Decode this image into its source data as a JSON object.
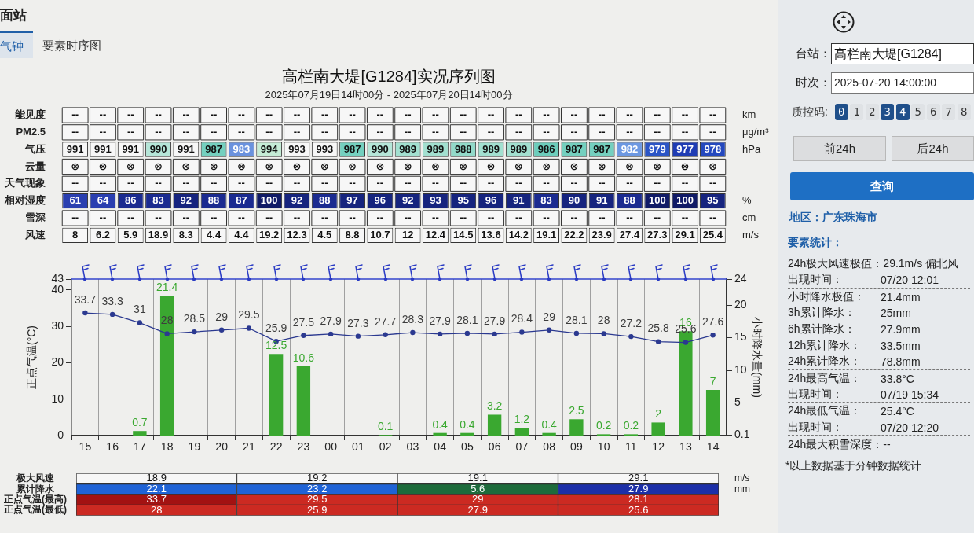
{
  "chart_data": [
    {
      "type": "other",
      "annotations": [
        "面站",
        "气钟",
        "要素时序图"
      ]
    },
    {
      "type": "heatmap",
      "title": "高栏南大堤[G1284]实况序列图",
      "subtitle": "2025年07月19日14时00分 - 2025年07月20日14时00分",
      "categories": [
        null,
        null,
        null,
        null,
        null,
        null,
        null,
        null,
        null,
        null,
        null,
        null,
        null,
        null,
        null,
        null,
        null,
        null,
        null,
        null,
        null,
        null,
        null,
        null
      ],
      "y_categories": [
        "能见度",
        "PM2.5",
        "气压",
        "云量",
        "天气现象",
        "相对湿度",
        "雪深",
        "风速"
      ],
      "y2_categories": [
        "km",
        "μg/m³",
        "hPa",
        null,
        null,
        "%",
        "cm",
        "m/s"
      ],
      "cells": [
        [
          null,
          null,
          null,
          null,
          null,
          null,
          null,
          null,
          null,
          null,
          null,
          null,
          null,
          null,
          null,
          null,
          null,
          null,
          null,
          null,
          null,
          null,
          null,
          null
        ],
        [
          null,
          null,
          null,
          null,
          null,
          null,
          null,
          null,
          null,
          null,
          null,
          null,
          null,
          null,
          null,
          null,
          null,
          null,
          null,
          null,
          null,
          null,
          null,
          null
        ],
        [
          991,
          991,
          991,
          990,
          991,
          987,
          983,
          994,
          993,
          993,
          987,
          990,
          989,
          989,
          988,
          989,
          989,
          986,
          987,
          987,
          982,
          979,
          977,
          978
        ],
        [
          null,
          null,
          null,
          null,
          null,
          null,
          null,
          null,
          null,
          null,
          null,
          null,
          null,
          null,
          null,
          null,
          null,
          null,
          null,
          null,
          null,
          null,
          null,
          null
        ],
        [
          null,
          null,
          null,
          null,
          null,
          null,
          null,
          null,
          null,
          null,
          null,
          null,
          null,
          null,
          null,
          null,
          null,
          null,
          null,
          null,
          null,
          null,
          null,
          null
        ],
        [
          61,
          64,
          86,
          83,
          92,
          88,
          87,
          100,
          92,
          88,
          97,
          96,
          92,
          93,
          95,
          96,
          91,
          83,
          90,
          91,
          88,
          100,
          100,
          95
        ],
        [
          null,
          null,
          null,
          null,
          null,
          null,
          null,
          null,
          null,
          null,
          null,
          null,
          null,
          null,
          null,
          null,
          null,
          null,
          null,
          null,
          null,
          null,
          null,
          null
        ],
        [
          8,
          6.2,
          5.9,
          18.9,
          8.3,
          4.4,
          4.4,
          19.2,
          12.3,
          4.5,
          8.8,
          10.7,
          12,
          12.4,
          14.5,
          13.6,
          14.2,
          19.1,
          22.2,
          23.9,
          27.4,
          27.3,
          29.1,
          25.4
        ]
      ],
      "cell_labels": [
        [
          "--",
          "--",
          "--",
          "--",
          "--",
          "--",
          "--",
          "--",
          "--",
          "--",
          "--",
          "--",
          "--",
          "--",
          "--",
          "--",
          "--",
          "--",
          "--",
          "--",
          "--",
          "--",
          "--",
          "--"
        ],
        [
          "--",
          "--",
          "--",
          "--",
          "--",
          "--",
          "--",
          "--",
          "--",
          "--",
          "--",
          "--",
          "--",
          "--",
          "--",
          "--",
          "--",
          "--",
          "--",
          "--",
          "--",
          "--",
          "--",
          "--"
        ],
        [
          "991",
          "991",
          "991",
          "990",
          "991",
          "987",
          "983",
          "994",
          "993",
          "993",
          "987",
          "990",
          "989",
          "989",
          "988",
          "989",
          "989",
          "986",
          "987",
          "987",
          "982",
          "979",
          "977",
          "978"
        ],
        [
          "⊗",
          "⊗",
          "⊗",
          "⊗",
          "⊗",
          "⊗",
          "⊗",
          "⊗",
          "⊗",
          "⊗",
          "⊗",
          "⊗",
          "⊗",
          "⊗",
          "⊗",
          "⊗",
          "⊗",
          "⊗",
          "⊗",
          "⊗",
          "⊗",
          "⊗",
          "⊗",
          "⊗"
        ],
        [
          "--",
          "--",
          "--",
          "--",
          "--",
          "--",
          "--",
          "--",
          "--",
          "--",
          "--",
          "--",
          "--",
          "--",
          "--",
          "--",
          "--",
          "--",
          "--",
          "--",
          "--",
          "--",
          "--",
          "--"
        ],
        [
          "61",
          "64",
          "86",
          "83",
          "92",
          "88",
          "87",
          "100",
          "92",
          "88",
          "97",
          "96",
          "92",
          "93",
          "95",
          "96",
          "91",
          "83",
          "90",
          "91",
          "88",
          "100",
          "100",
          "95"
        ],
        [
          "--",
          "--",
          "--",
          "--",
          "--",
          "--",
          "--",
          "--",
          "--",
          "--",
          "--",
          "--",
          "--",
          "--",
          "--",
          "--",
          "--",
          "--",
          "--",
          "--",
          "--",
          "--",
          "--",
          "--"
        ],
        [
          "8",
          "6.2",
          "5.9",
          "18.9",
          "8.3",
          "4.4",
          "4.4",
          "19.2",
          "12.3",
          "4.5",
          "8.8",
          "10.7",
          "12",
          "12.4",
          "14.5",
          "13.6",
          "14.2",
          "19.1",
          "22.2",
          "23.9",
          "27.4",
          "27.3",
          "29.1",
          "25.4"
        ]
      ],
      "colors": [
        [
          "#f7f7f7",
          "#f7f7f7",
          "#f7f7f7",
          "#f7f7f7",
          "#f7f7f7",
          "#f7f7f7",
          "#f7f7f7",
          "#f7f7f7",
          "#f7f7f7",
          "#f7f7f7",
          "#f7f7f7",
          "#f7f7f7",
          "#f7f7f7",
          "#f7f7f7",
          "#f7f7f7",
          "#f7f7f7",
          "#f7f7f7",
          "#f7f7f7",
          "#f7f7f7",
          "#f7f7f7",
          "#f7f7f7",
          "#f7f7f7",
          "#f7f7f7",
          "#f7f7f7"
        ],
        [
          "#f7f7f7",
          "#f7f7f7",
          "#f7f7f7",
          "#f7f7f7",
          "#f7f7f7",
          "#f7f7f7",
          "#f7f7f7",
          "#f7f7f7",
          "#f7f7f7",
          "#f7f7f7",
          "#f7f7f7",
          "#f7f7f7",
          "#f7f7f7",
          "#f7f7f7",
          "#f7f7f7",
          "#f7f7f7",
          "#f7f7f7",
          "#f7f7f7",
          "#f7f7f7",
          "#f7f7f7",
          "#f7f7f7",
          "#f7f7f7",
          "#f7f7f7",
          "#f7f7f7"
        ],
        [
          "#f7f7f7",
          "#f7f7f7",
          "#f7f7f7",
          "#b5e6d8",
          "#f7f7f7",
          "#74d0bf",
          "#6a92de",
          "#c5ecd6",
          "#f7f7f7",
          "#f7f7f7",
          "#74d0bf",
          "#b5e6d8",
          "#a2e0d0",
          "#a2e0d0",
          "#92dac9",
          "#a2e0d0",
          "#a2e0d0",
          "#6ccdbb",
          "#74d0bf",
          "#74d0bf",
          "#6c98e2",
          "#2b55c6",
          "#1e3cb4",
          "#2448be"
        ],
        [
          "#f7f7f7",
          "#f7f7f7",
          "#f7f7f7",
          "#f7f7f7",
          "#f7f7f7",
          "#f7f7f7",
          "#f7f7f7",
          "#f7f7f7",
          "#f7f7f7",
          "#f7f7f7",
          "#f7f7f7",
          "#f7f7f7",
          "#f7f7f7",
          "#f7f7f7",
          "#f7f7f7",
          "#f7f7f7",
          "#f7f7f7",
          "#f7f7f7",
          "#f7f7f7",
          "#f7f7f7",
          "#f7f7f7",
          "#f7f7f7",
          "#f7f7f7",
          "#f7f7f7"
        ],
        [
          "#f7f7f7",
          "#f7f7f7",
          "#f7f7f7",
          "#f7f7f7",
          "#f7f7f7",
          "#f7f7f7",
          "#f7f7f7",
          "#f7f7f7",
          "#f7f7f7",
          "#f7f7f7",
          "#f7f7f7",
          "#f7f7f7",
          "#f7f7f7",
          "#f7f7f7",
          "#f7f7f7",
          "#f7f7f7",
          "#f7f7f7",
          "#f7f7f7",
          "#f7f7f7",
          "#f7f7f7",
          "#f7f7f7",
          "#f7f7f7",
          "#f7f7f7",
          "#f7f7f7"
        ],
        [
          "#2a3fb0",
          "#2a3fb0",
          "#1b2b90",
          "#1b2b90",
          "#16247e",
          "#1b2b90",
          "#1b2b90",
          "#101a66",
          "#16247e",
          "#1b2b90",
          "#16247e",
          "#16247e",
          "#16247e",
          "#16247e",
          "#16247e",
          "#16247e",
          "#16247e",
          "#1b2b90",
          "#16247e",
          "#16247e",
          "#1b2b90",
          "#101a66",
          "#101a66",
          "#16247e"
        ],
        [
          "#f7f7f7",
          "#f7f7f7",
          "#f7f7f7",
          "#f7f7f7",
          "#f7f7f7",
          "#f7f7f7",
          "#f7f7f7",
          "#f7f7f7",
          "#f7f7f7",
          "#f7f7f7",
          "#f7f7f7",
          "#f7f7f7",
          "#f7f7f7",
          "#f7f7f7",
          "#f7f7f7",
          "#f7f7f7",
          "#f7f7f7",
          "#f7f7f7",
          "#f7f7f7",
          "#f7f7f7",
          "#f7f7f7",
          "#f7f7f7",
          "#f7f7f7",
          "#f7f7f7"
        ],
        [
          "#f7f7f7",
          "#f7f7f7",
          "#f7f7f7",
          "#f7f7f7",
          "#f7f7f7",
          "#f7f7f7",
          "#f7f7f7",
          "#f7f7f7",
          "#f7f7f7",
          "#f7f7f7",
          "#f7f7f7",
          "#f7f7f7",
          "#f7f7f7",
          "#f7f7f7",
          "#f7f7f7",
          "#f7f7f7",
          "#f7f7f7",
          "#f7f7f7",
          "#f7f7f7",
          "#f7f7f7",
          "#f7f7f7",
          "#f7f7f7",
          "#f7f7f7",
          "#f7f7f7"
        ]
      ]
    },
    {
      "type": "bar",
      "categories": [
        "15",
        "16",
        "17",
        "18",
        "19",
        "20",
        "21",
        "22",
        "23",
        "00",
        "01",
        "02",
        "03",
        "04",
        "05",
        "06",
        "07",
        "08",
        "09",
        "10",
        "11",
        "12",
        "13",
        "14"
      ],
      "series": [
        {
          "color": "#3aa830",
          "axis": "y2",
          "values": [
            null,
            null,
            0.7,
            21.4,
            null,
            null,
            null,
            12.5,
            10.6,
            null,
            null,
            0.1,
            null,
            0.4,
            0.4,
            3.2,
            1.2,
            0.4,
            2.5,
            0.2,
            0.2,
            2,
            16,
            7
          ]
        },
        {
          "type": "line",
          "color": "#2b3990",
          "values": [
            33.7,
            33.3,
            31,
            28,
            28.5,
            29,
            29.5,
            25.9,
            27.5,
            27.9,
            27.3,
            27.7,
            28.3,
            27.9,
            28.1,
            27.9,
            28.4,
            29,
            28.1,
            28,
            27.2,
            25.8,
            25.6,
            27.6
          ]
        }
      ],
      "ylabel": "正点气温(°C)",
      "y2label": "小时降水量(mm)",
      "ylim": [
        0,
        43
      ],
      "yticks": [
        0,
        10,
        20,
        30,
        40,
        43
      ],
      "y2lim": [
        0,
        24
      ],
      "y2ticks": [
        0.1,
        5,
        10,
        15,
        20,
        24
      ],
      "grid": "x",
      "marker": "circle",
      "data_labels": true,
      "ref_lines": [
        {
          "axis": "y",
          "value": 43,
          "color": "#3344cc"
        }
      ]
    },
    {
      "type": "heatmap",
      "data_labels": true,
      "categories": [
        null,
        null,
        null,
        null
      ],
      "y_categories": [
        "极大风速",
        "累计降水",
        "正点气温(最高)",
        "正点气温(最低)"
      ],
      "y2_categories": [
        "m/s",
        "mm",
        null,
        null
      ],
      "cells": [
        [
          18.9,
          19.2,
          19.1,
          29.1
        ],
        [
          22.1,
          23.2,
          5.6,
          27.9
        ],
        [
          33.7,
          29.5,
          29,
          28.1
        ],
        [
          28,
          25.9,
          27.9,
          25.6
        ]
      ],
      "colors": [
        [
          "#f7f7f7",
          "#f7f7f7",
          "#f7f7f7",
          "#f7f7f7"
        ],
        [
          "#1f63d6",
          "#1f63d6",
          "#1d6b3c",
          "#1c2fa8"
        ],
        [
          "#a31212",
          "#cc2a22",
          "#cc2a22",
          "#cc2a22"
        ],
        [
          "#cc2a22",
          "#cc2a22",
          "#cc2a22",
          "#cc2a22"
        ]
      ]
    },
    {
      "type": "other",
      "annotations": [
        "台站：",
        "高栏南大堤[G1284]",
        "时次：",
        "2025-07-20 14:00:00",
        "质控码:",
        "0 1 2 3 4 5 6 7 8",
        "前24h",
        "后24h",
        "查询",
        "地区：广东珠海市",
        "要素统计：",
        "24h极大风速极值：",
        "29.1m/s 偏北风",
        "出现时间：",
        "07/20 12:01",
        "小时降水极值：",
        "21.4mm",
        "3h累计降水：",
        "25mm",
        "6h累计降水：",
        "27.9mm",
        "12h累计降水：",
        "33.5mm",
        "24h累计降水：",
        "78.8mm",
        "24h最高气温：",
        "33.8°C",
        "出现时间：",
        "07/19 15:34",
        "24h最低气温：",
        "25.4°C",
        "出现时间：",
        "07/20 12:20",
        "24h最大积雪深度：--",
        "*以上数据基于分钟数据统计"
      ]
    }
  ]
}
